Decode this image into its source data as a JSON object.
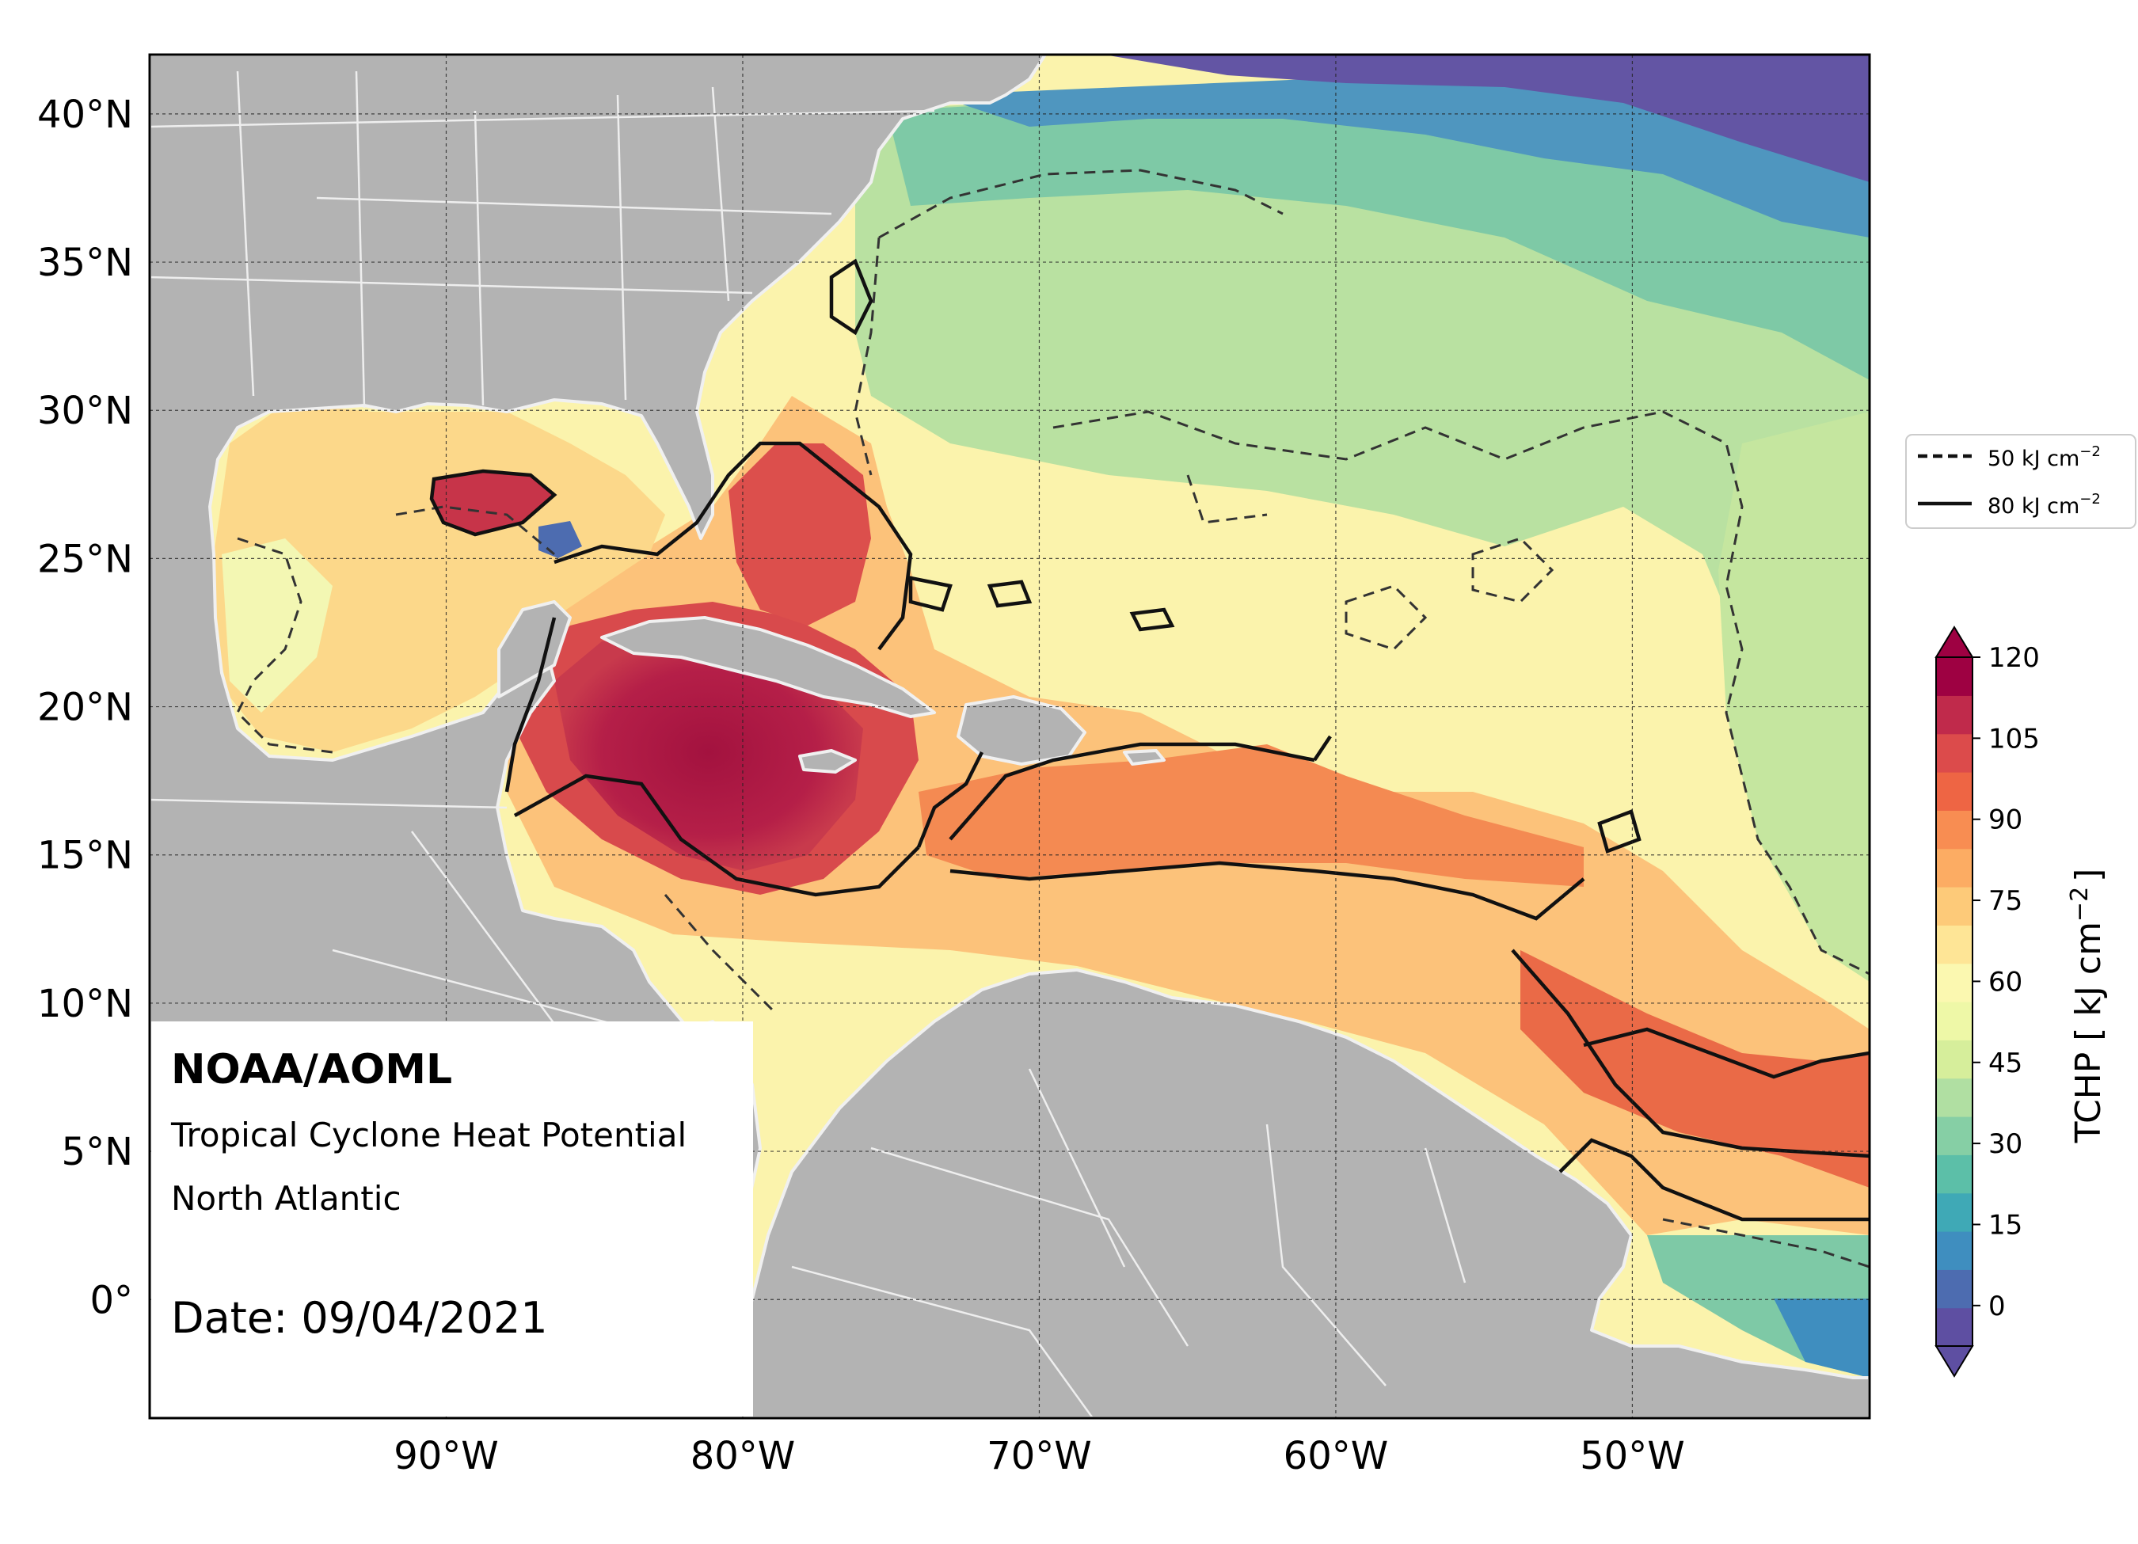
{
  "map": {
    "bounds": {
      "lon_min": -100,
      "lon_max": -42,
      "lat_min": -4,
      "lat_max": 42
    },
    "x_ticks": [
      {
        "lon": -90,
        "label": "90°W"
      },
      {
        "lon": -80,
        "label": "80°W"
      },
      {
        "lon": -70,
        "label": "70°W"
      },
      {
        "lon": -60,
        "label": "60°W"
      },
      {
        "lon": -50,
        "label": "50°W"
      }
    ],
    "y_ticks": [
      {
        "lat": 40,
        "label": "40°N"
      },
      {
        "lat": 35,
        "label": "35°N"
      },
      {
        "lat": 30,
        "label": "30°N"
      },
      {
        "lat": 25,
        "label": "25°N"
      },
      {
        "lat": 20,
        "label": "20°N"
      },
      {
        "lat": 15,
        "label": "15°N"
      },
      {
        "lat": 10,
        "label": "10°N"
      },
      {
        "lat": 5,
        "label": "5°N"
      },
      {
        "lat": 0,
        "label": "0°"
      }
    ],
    "land_color": "#b3b3b3",
    "border_color": "#f2f2f2"
  },
  "info_box": {
    "org": "NOAA/AOML",
    "product": "Tropical Cyclone Heat Potential",
    "region": "North Atlantic",
    "date": "Date: 09/04/2021"
  },
  "legend": {
    "items": [
      {
        "label": "50 kJ cm",
        "sup": "−2",
        "style": "dashed"
      },
      {
        "label": "80 kJ cm",
        "sup": "−2",
        "style": "solid"
      }
    ]
  },
  "colorbar": {
    "label_main": "TCHP [ kJ cm",
    "label_sup": "−2",
    "label_end": "]",
    "min": -7.5,
    "max": 120,
    "ticks": [
      {
        "value": 0,
        "label": "0"
      },
      {
        "value": 15,
        "label": "15"
      },
      {
        "value": 30,
        "label": "30"
      },
      {
        "value": 45,
        "label": "45"
      },
      {
        "value": 60,
        "label": "60"
      },
      {
        "value": 75,
        "label": "75"
      },
      {
        "value": 90,
        "label": "90"
      },
      {
        "value": 105,
        "label": "105"
      },
      {
        "value": 120,
        "label": "120"
      }
    ],
    "colors": [
      "#5e4fa2",
      "#4d6cb0",
      "#3f8ebf",
      "#3fa9b6",
      "#5cbfa8",
      "#86cfa5",
      "#b0dfa2",
      "#d6ee9b",
      "#eef8a7",
      "#fbf8b0",
      "#fee596",
      "#fdca79",
      "#fcac63",
      "#f88d52",
      "#ee6544",
      "#dc4b4b",
      "#c02a4b",
      "#9e0142"
    ]
  }
}
